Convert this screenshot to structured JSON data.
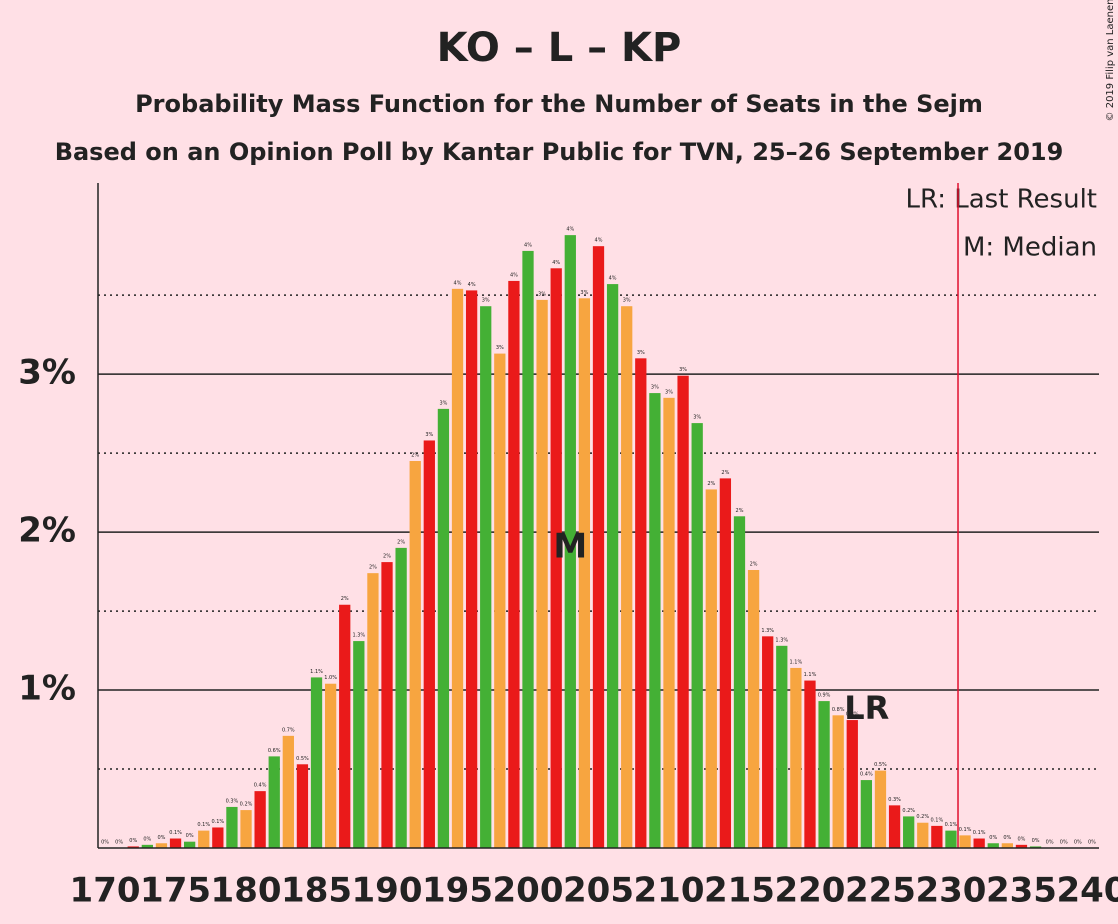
{
  "chart_data": {
    "type": "bar",
    "title": "KO – L – KP",
    "subtitle": "Probability Mass Function for the Number of Seats in the Sejm",
    "subtitle2": "Based on an Opinion Poll by Kantar Public for TVN, 25–26 September 2019",
    "copyright": "© 2019 Filip van Laenen",
    "legend": [
      "LR: Last Result",
      "M: Median"
    ],
    "x": [
      170,
      171,
      172,
      173,
      174,
      175,
      176,
      177,
      178,
      179,
      180,
      181,
      182,
      183,
      184,
      185,
      186,
      187,
      188,
      189,
      190,
      191,
      192,
      193,
      194,
      195,
      196,
      197,
      198,
      199,
      200,
      201,
      202,
      203,
      204,
      205,
      206,
      207,
      208,
      209,
      210,
      211,
      212,
      213,
      214,
      215,
      216,
      217,
      218,
      219,
      220,
      221,
      222,
      223,
      224,
      225,
      226,
      227,
      228,
      229,
      230,
      231,
      232,
      233,
      234,
      235,
      236,
      237,
      238,
      239,
      240
    ],
    "values": [
      0,
      0,
      0.01,
      0.02,
      0.03,
      0.06,
      0.04,
      0.11,
      0.13,
      0.26,
      0.24,
      0.36,
      0.58,
      0.71,
      0.53,
      1.08,
      1.04,
      1.54,
      1.31,
      1.74,
      1.81,
      1.9,
      2.45,
      2.58,
      2.78,
      3.54,
      3.53,
      3.43,
      3.13,
      3.59,
      3.78,
      3.47,
      3.67,
      3.88,
      3.48,
      3.81,
      3.57,
      3.43,
      3.1,
      2.88,
      2.85,
      2.99,
      2.69,
      2.27,
      2.34,
      2.1,
      1.76,
      1.34,
      1.28,
      1.14,
      1.06,
      0.93,
      0.84,
      0.81,
      0.43,
      0.49,
      0.27,
      0.2,
      0.16,
      0.14,
      0.11,
      0.08,
      0.06,
      0.03,
      0.03,
      0.02,
      0.01,
      0,
      0,
      0,
      0
    ],
    "value_labels": [
      "0%",
      "0%",
      "0%",
      "0%",
      "0%",
      "0.1%",
      "0%",
      "0.1%",
      "0.1%",
      "0.3%",
      "0.2%",
      "0.4%",
      "0.6%",
      "0.7%",
      "0.5%",
      "1.1%",
      "1.0%",
      "2%",
      "1.3%",
      "2%",
      "2%",
      "2%",
      "2%",
      "3%",
      "3%",
      "4%",
      "4%",
      "3%",
      "3%",
      "4%",
      "4%",
      "3%",
      "4%",
      "4%",
      "3%",
      "4%",
      "4%",
      "3%",
      "3%",
      "3%",
      "3%",
      "3%",
      "3%",
      "2%",
      "2%",
      "2%",
      "2%",
      "1.3%",
      "1.3%",
      "1.1%",
      "1.1%",
      "0.9%",
      "0.8%",
      "0.8%",
      "0.4%",
      "0.5%",
      "0.3%",
      "0.2%",
      "0.2%",
      "0.1%",
      "0.1%",
      "0.1%",
      "0.1%",
      "0%",
      "0%",
      "0%",
      "0%",
      "0%",
      "0%",
      "0%",
      "0%"
    ],
    "palette": [
      "#44b035",
      "#f7a540",
      "#ea1a1a"
    ],
    "annotations": [
      {
        "text": "M",
        "x": 203
      },
      {
        "text": "LR",
        "x": 223
      }
    ],
    "threshold": 230.5,
    "xlim": [
      169.5,
      240.5
    ],
    "xticks": [
      170,
      175,
      180,
      185,
      190,
      195,
      200,
      205,
      210,
      215,
      220,
      225,
      230,
      235,
      240
    ],
    "ylim": [
      0,
      4.21
    ],
    "yticks": [
      {
        "value": 1,
        "label": "1%"
      },
      {
        "value": 2,
        "label": "2%"
      },
      {
        "value": 3,
        "label": "3%"
      }
    ],
    "yminor": [
      0.5,
      1.5,
      2.5,
      3.5
    ]
  }
}
